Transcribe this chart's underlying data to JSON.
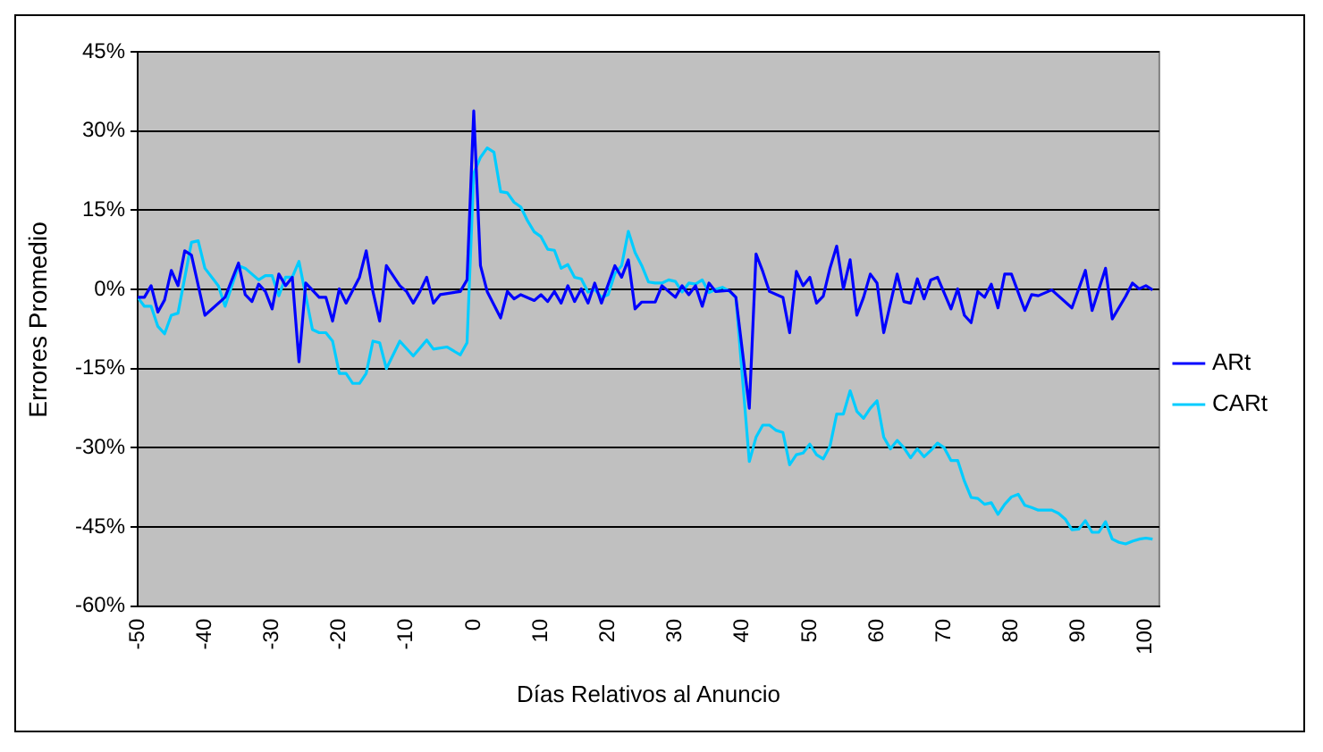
{
  "chart_data": {
    "type": "line",
    "xlabel": "Días Relativos al Anuncio",
    "ylabel": "Errores Promedio",
    "xlim": [
      -50,
      102
    ],
    "xticks": [
      -50,
      -40,
      -30,
      -20,
      -10,
      0,
      10,
      20,
      30,
      40,
      50,
      60,
      70,
      80,
      90,
      100
    ],
    "ylim": [
      -60,
      45
    ],
    "yticks": [
      {
        "value": -60,
        "label": "-60%"
      },
      {
        "value": -45,
        "label": "-45%"
      },
      {
        "value": -30,
        "label": "-30%"
      },
      {
        "value": -15,
        "label": "-15%"
      },
      {
        "value": 0,
        "label": "0%"
      },
      {
        "value": 15,
        "label": "15%"
      },
      {
        "value": 30,
        "label": "30%"
      },
      {
        "value": 45,
        "label": "45%"
      }
    ],
    "grid": "y",
    "legend": "right",
    "marker": "none",
    "line_style": "solid",
    "series": [
      {
        "name": "ARt",
        "color": "#0000ff",
        "x": [
          -50,
          -49,
          -48,
          -47,
          -46,
          -45,
          -44,
          -43,
          -42,
          -40,
          -37,
          -35,
          -34,
          -33,
          -32,
          -31,
          -30,
          -29,
          -28,
          -27,
          -26,
          -25,
          -23,
          -22,
          -21,
          -20,
          -19,
          -17,
          -16,
          -15,
          -14,
          -13,
          -11,
          -10,
          -9,
          -8,
          -7,
          -6,
          -5,
          -2,
          -1,
          0,
          1,
          2,
          4,
          5,
          6,
          7,
          9,
          10,
          11,
          12,
          13,
          14,
          15,
          16,
          17,
          18,
          19,
          21,
          22,
          23,
          24,
          25,
          27,
          28,
          30,
          31,
          32,
          33,
          34,
          35,
          36,
          38,
          39,
          41,
          42,
          43,
          44,
          46,
          47,
          48,
          49,
          50,
          51,
          52,
          53,
          54,
          55,
          56,
          57,
          58,
          59,
          60,
          61,
          63,
          64,
          65,
          66,
          67,
          68,
          69,
          71,
          72,
          73,
          74,
          75,
          76,
          77,
          78,
          79,
          80,
          82,
          83,
          84,
          86,
          89,
          91,
          92,
          94,
          95,
          97,
          98,
          99,
          100,
          101
        ],
        "values": [
          -1.5,
          -1.5,
          0.7,
          -4.3,
          -2,
          3.6,
          0.7,
          7.3,
          6.5,
          -4.9,
          -1.5,
          5,
          -1,
          -2.3,
          1,
          -0.4,
          -3.7,
          2.9,
          0.7,
          2.3,
          -13.7,
          1.2,
          -1.5,
          -1.5,
          -6,
          0.1,
          -2.6,
          2.3,
          7.3,
          -0.4,
          -6,
          4.5,
          0.7,
          -0.4,
          -2.6,
          -0.4,
          2.3,
          -2.6,
          -1,
          -0.4,
          1.8,
          33.8,
          4.5,
          -0.4,
          -5.4,
          -0.4,
          -1.8,
          -1,
          -2.1,
          -1,
          -2.3,
          -0.4,
          -2.6,
          0.7,
          -2.3,
          0.1,
          -2.6,
          1.2,
          -2.6,
          4.5,
          2.3,
          5.6,
          -3.7,
          -2.4,
          -2.4,
          0.7,
          -1.5,
          0.7,
          -1,
          0.7,
          -3.2,
          1.2,
          -0.4,
          -0.2,
          -1.5,
          -22.5,
          6.7,
          3.4,
          -0.4,
          -1.5,
          -8.2,
          3.4,
          0.7,
          2.3,
          -2.6,
          -1.3,
          4,
          8.2,
          0.1,
          5.6,
          -4.9,
          -1.5,
          2.9,
          1.2,
          -8.2,
          2.9,
          -2.3,
          -2.6,
          2,
          -1.8,
          1.8,
          2.3,
          -3.7,
          0.1,
          -4.9,
          -6.3,
          -0.4,
          -1.5,
          1,
          -3.5,
          2.9,
          2.9,
          -4,
          -1,
          -1.2,
          -0.1,
          -3.5,
          3.6,
          -4,
          4,
          -5.6,
          -1.3,
          1.2,
          0.1,
          0.7,
          -0.1
        ]
      },
      {
        "name": "CARt",
        "color": "#00ccff",
        "x": [
          -50,
          -49,
          -48,
          -47,
          -46,
          -45,
          -44,
          -42,
          -41,
          -40,
          -38,
          -37,
          -35,
          -34,
          -32,
          -31,
          -30,
          -29,
          -28,
          -27,
          -26,
          -24,
          -23,
          -22,
          -21,
          -20,
          -19,
          -18,
          -17,
          -16,
          -15,
          -14,
          -13,
          -11,
          -9,
          -8,
          -7,
          -6,
          -4,
          -2,
          -1,
          0,
          1,
          2,
          3,
          4,
          5,
          6,
          7,
          8,
          9,
          10,
          11,
          12,
          13,
          14,
          15,
          16,
          17,
          18,
          19,
          20,
          21,
          22,
          23,
          24,
          25,
          26,
          27,
          28,
          29,
          30,
          31,
          32,
          33,
          34,
          35,
          36,
          37,
          38,
          39,
          41,
          42,
          43,
          44,
          45,
          46,
          47,
          48,
          49,
          50,
          51,
          52,
          53,
          54,
          55,
          56,
          57,
          58,
          59,
          60,
          61,
          62,
          63,
          64,
          65,
          66,
          67,
          68,
          69,
          70,
          71,
          72,
          73,
          74,
          75,
          76,
          77,
          78,
          79,
          80,
          81,
          82,
          83,
          84,
          85,
          86,
          87,
          88,
          89,
          90,
          91,
          92,
          93,
          94,
          95,
          96,
          97,
          98,
          99,
          100,
          101
        ],
        "values": [
          -1.5,
          -3.2,
          -3.2,
          -7,
          -8.4,
          -4.9,
          -4.5,
          8.9,
          9.2,
          4,
          0.7,
          -3.2,
          4.5,
          4,
          1.8,
          2.6,
          2.6,
          -1.2,
          2.3,
          2.3,
          5.3,
          -7.6,
          -8.2,
          -8.2,
          -9.8,
          -15.9,
          -15.9,
          -17.8,
          -17.8,
          -15.9,
          -9.8,
          -10.1,
          -15,
          -9.8,
          -12.6,
          -11.1,
          -9.6,
          -11.3,
          -10.9,
          -12.4,
          -10.1,
          22,
          25,
          26.8,
          26,
          18.5,
          18.3,
          16.5,
          15.6,
          13,
          10.9,
          10,
          7.6,
          7.4,
          4,
          4.7,
          2.3,
          2,
          -0.5,
          0,
          -1.5,
          -1,
          3,
          4.5,
          11,
          7,
          4.5,
          1.4,
          1.2,
          1.2,
          1.8,
          1.5,
          -0.5,
          1.2,
          1,
          1.8,
          -0.6,
          0,
          0.4,
          -0.3,
          -1.5,
          -32.6,
          -28,
          -25.7,
          -25.7,
          -26.7,
          -27.1,
          -33.2,
          -31.3,
          -31,
          -29.3,
          -31.3,
          -32.1,
          -29.7,
          -23.6,
          -23.6,
          -19.2,
          -23.1,
          -24.4,
          -22.5,
          -21.1,
          -28,
          -30.2,
          -28.6,
          -30,
          -31.9,
          -30.2,
          -31.7,
          -30.5,
          -29.1,
          -30,
          -32.4,
          -32.4,
          -36.3,
          -39.4,
          -39.6,
          -40.7,
          -40.4,
          -42.6,
          -40.7,
          -39.3,
          -38.8,
          -40.9,
          -41.3,
          -41.8,
          -41.8,
          -41.8,
          -42.4,
          -43.5,
          -45.5,
          -45.4,
          -43.8,
          -46,
          -46,
          -44,
          -47.3,
          -47.9,
          -48.2,
          -47.7,
          -47.3,
          -47.1,
          -47.3
        ]
      }
    ]
  }
}
